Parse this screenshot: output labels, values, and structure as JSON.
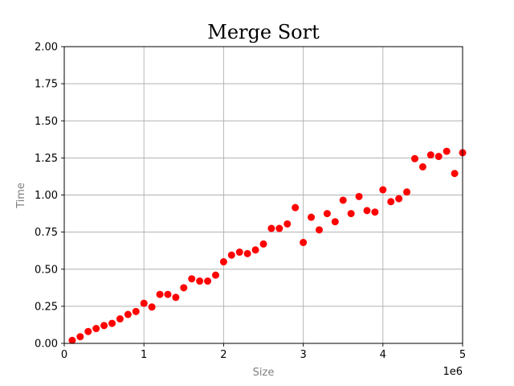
{
  "chart_data": {
    "type": "scatter",
    "title": "Merge Sort",
    "xlabel": "Size",
    "ylabel": "Time",
    "x_offset_label": "1e6",
    "xlim": [
      0,
      5000000
    ],
    "ylim": [
      0,
      2.0
    ],
    "x_ticks": [
      0,
      1000000,
      2000000,
      3000000,
      4000000,
      5000000
    ],
    "x_tick_labels": [
      "0",
      "1",
      "2",
      "3",
      "4",
      "5"
    ],
    "y_ticks": [
      0,
      0.25,
      0.5,
      0.75,
      1.0,
      1.25,
      1.5,
      1.75,
      2.0
    ],
    "y_tick_labels": [
      "0.00",
      "0.25",
      "0.50",
      "0.75",
      "1.00",
      "1.25",
      "1.50",
      "1.75",
      "2.00"
    ],
    "grid": true,
    "marker_color": "#ff0000",
    "axis_label_color": "#808080",
    "series": [
      {
        "x": [
          100000,
          200000,
          300000,
          400000,
          500000,
          600000,
          700000,
          800000,
          900000,
          1000000,
          1100000,
          1200000,
          1300000,
          1400000,
          1500000,
          1600000,
          1700000,
          1800000,
          1900000,
          2000000,
          2100000,
          2200000,
          2300000,
          2400000,
          2500000,
          2600000,
          2700000,
          2800000,
          2900000,
          3000000,
          3100000,
          3200000,
          3300000,
          3400000,
          3500000,
          3600000,
          3700000,
          3800000,
          3900000,
          4000000,
          4100000,
          4200000,
          4300000,
          4400000,
          4500000,
          4600000,
          4700000,
          4800000,
          4900000,
          5000000
        ],
        "y": [
          0.02,
          0.045,
          0.08,
          0.1,
          0.12,
          0.135,
          0.165,
          0.195,
          0.215,
          0.27,
          0.245,
          0.33,
          0.33,
          0.31,
          0.375,
          0.435,
          0.42,
          0.42,
          0.46,
          0.55,
          0.595,
          0.615,
          0.605,
          0.63,
          0.67,
          0.775,
          0.775,
          0.805,
          0.915,
          0.68,
          0.85,
          0.765,
          0.875,
          0.82,
          0.965,
          0.875,
          0.99,
          0.895,
          0.885,
          1.035,
          0.955,
          0.975,
          1.02,
          1.245,
          1.19,
          1.27,
          1.26,
          1.295,
          1.145,
          1.285
        ]
      }
    ]
  }
}
